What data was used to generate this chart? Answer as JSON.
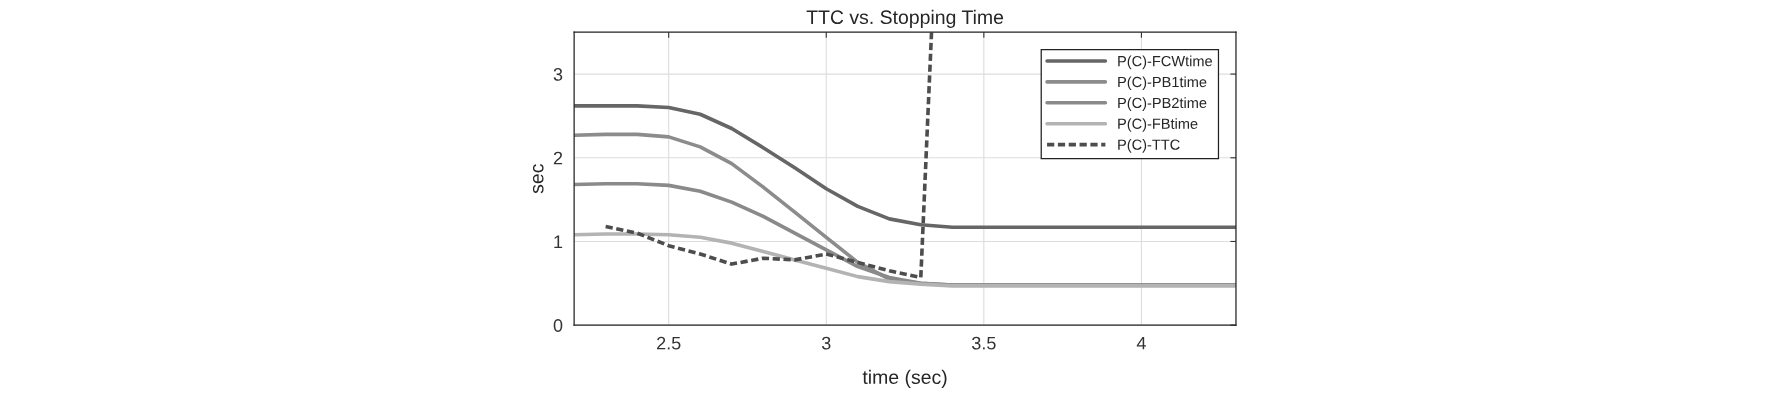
{
  "chart_data": {
    "type": "line",
    "title": "TTC vs. Stopping Time",
    "xlabel": "time (sec)",
    "ylabel": "sec",
    "xlim": [
      2.2,
      4.3
    ],
    "xticks": [
      2.5,
      3,
      3.5,
      4
    ],
    "ylim": [
      0,
      3.5
    ],
    "yticks": [
      0,
      1,
      2,
      3
    ],
    "grid": true,
    "legend": "top right",
    "x": [
      2.2,
      2.3,
      2.4,
      2.5,
      2.6,
      2.7,
      2.8,
      2.9,
      3.0,
      3.1,
      3.2,
      3.3,
      3.4,
      3.5,
      3.6,
      3.7,
      3.8,
      3.9,
      4.0,
      4.1,
      4.2,
      4.3
    ],
    "series": [
      {
        "name": "P(C)-FCWtime",
        "color": "#666666",
        "line_style": "solid",
        "values": [
          2.62,
          2.62,
          2.62,
          2.6,
          2.52,
          2.35,
          2.12,
          1.88,
          1.63,
          1.42,
          1.27,
          1.2,
          1.17,
          1.17,
          1.17,
          1.17,
          1.17,
          1.17,
          1.17,
          1.17,
          1.17,
          1.17
        ]
      },
      {
        "name": "P(C)-PB1time",
        "color": "#8c8c8c",
        "line_style": "solid",
        "values": [
          2.27,
          2.28,
          2.28,
          2.25,
          2.13,
          1.93,
          1.65,
          1.35,
          1.05,
          0.75,
          0.55,
          0.5,
          0.48,
          0.48,
          0.48,
          0.48,
          0.48,
          0.48,
          0.48,
          0.48,
          0.48,
          0.48
        ]
      },
      {
        "name": "P(C)-PB2time",
        "color": "#8a8a8a",
        "line_style": "solid",
        "values": [
          1.68,
          1.69,
          1.69,
          1.67,
          1.6,
          1.47,
          1.3,
          1.1,
          0.9,
          0.7,
          0.57,
          0.5,
          0.48,
          0.48,
          0.48,
          0.48,
          0.48,
          0.48,
          0.48,
          0.48,
          0.48,
          0.48
        ]
      },
      {
        "name": "P(C)-FBtime",
        "color": "#b3b3b3",
        "line_style": "solid",
        "values": [
          1.08,
          1.09,
          1.09,
          1.08,
          1.05,
          0.98,
          0.88,
          0.78,
          0.68,
          0.58,
          0.52,
          0.49,
          0.47,
          0.47,
          0.47,
          0.47,
          0.47,
          0.47,
          0.47,
          0.47,
          0.47,
          0.47
        ]
      },
      {
        "name": "P(C)-TTC",
        "color": "#4d4d4d",
        "line_style": "dashed",
        "x": [
          2.3,
          2.4,
          2.5,
          2.6,
          2.7,
          2.8,
          2.9,
          3.0,
          3.1,
          3.2,
          3.3,
          3.334
        ],
        "values": [
          1.18,
          1.1,
          0.95,
          0.85,
          0.73,
          0.8,
          0.78,
          0.85,
          0.75,
          0.65,
          0.57,
          3.5
        ]
      }
    ]
  }
}
